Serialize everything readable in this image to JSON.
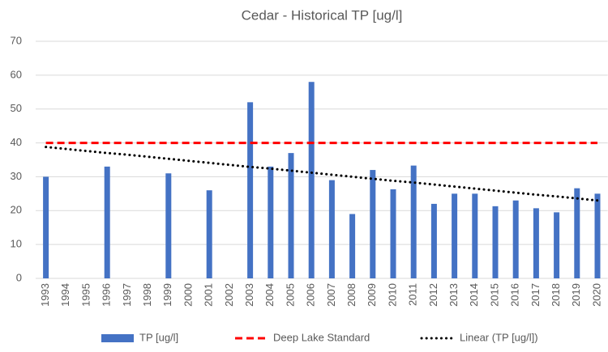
{
  "chart_data": {
    "type": "bar",
    "title": "Cedar - Historical TP [ug/l]",
    "categories": [
      "1993",
      "1994",
      "1995",
      "1996",
      "1997",
      "1998",
      "1999",
      "2000",
      "2001",
      "2002",
      "2003",
      "2004",
      "2005",
      "2006",
      "2007",
      "2008",
      "2009",
      "2010",
      "2011",
      "2012",
      "2013",
      "2014",
      "2015",
      "2016",
      "2017",
      "2018",
      "2019",
      "2020"
    ],
    "series": [
      {
        "name": "TP [ug/l]",
        "type": "bar",
        "color": "#4472c4",
        "values": [
          30,
          null,
          null,
          33,
          null,
          null,
          31,
          null,
          26,
          null,
          52,
          33,
          37,
          58,
          29,
          19,
          32,
          26.3,
          33.3,
          22,
          25,
          25,
          21.3,
          23,
          20.7,
          19.5,
          26.6,
          25
        ]
      },
      {
        "name": "Deep Lake Standard",
        "type": "line",
        "style": "dashed",
        "color": "#ff0000",
        "values": [
          40,
          40,
          40,
          40,
          40,
          40,
          40,
          40,
          40,
          40,
          40,
          40,
          40,
          40,
          40,
          40,
          40,
          40,
          40,
          40,
          40,
          40,
          40,
          40,
          40,
          40,
          40,
          40
        ]
      },
      {
        "name": "Linear (TP [ug/l])",
        "type": "line",
        "style": "dotted",
        "color": "#000000",
        "values": [
          38.8,
          38.2,
          37.6,
          37.0,
          36.5,
          35.9,
          35.3,
          34.7,
          34.1,
          33.5,
          32.9,
          32.4,
          31.8,
          31.2,
          30.6,
          30.0,
          29.4,
          28.8,
          28.3,
          27.7,
          27.1,
          26.5,
          25.9,
          25.3,
          24.7,
          24.2,
          23.6,
          23.0
        ]
      }
    ],
    "ylim": [
      0,
      70
    ],
    "yticks": [
      0,
      10,
      20,
      30,
      40,
      50,
      60,
      70
    ],
    "grid": true,
    "legend": "bottom"
  }
}
